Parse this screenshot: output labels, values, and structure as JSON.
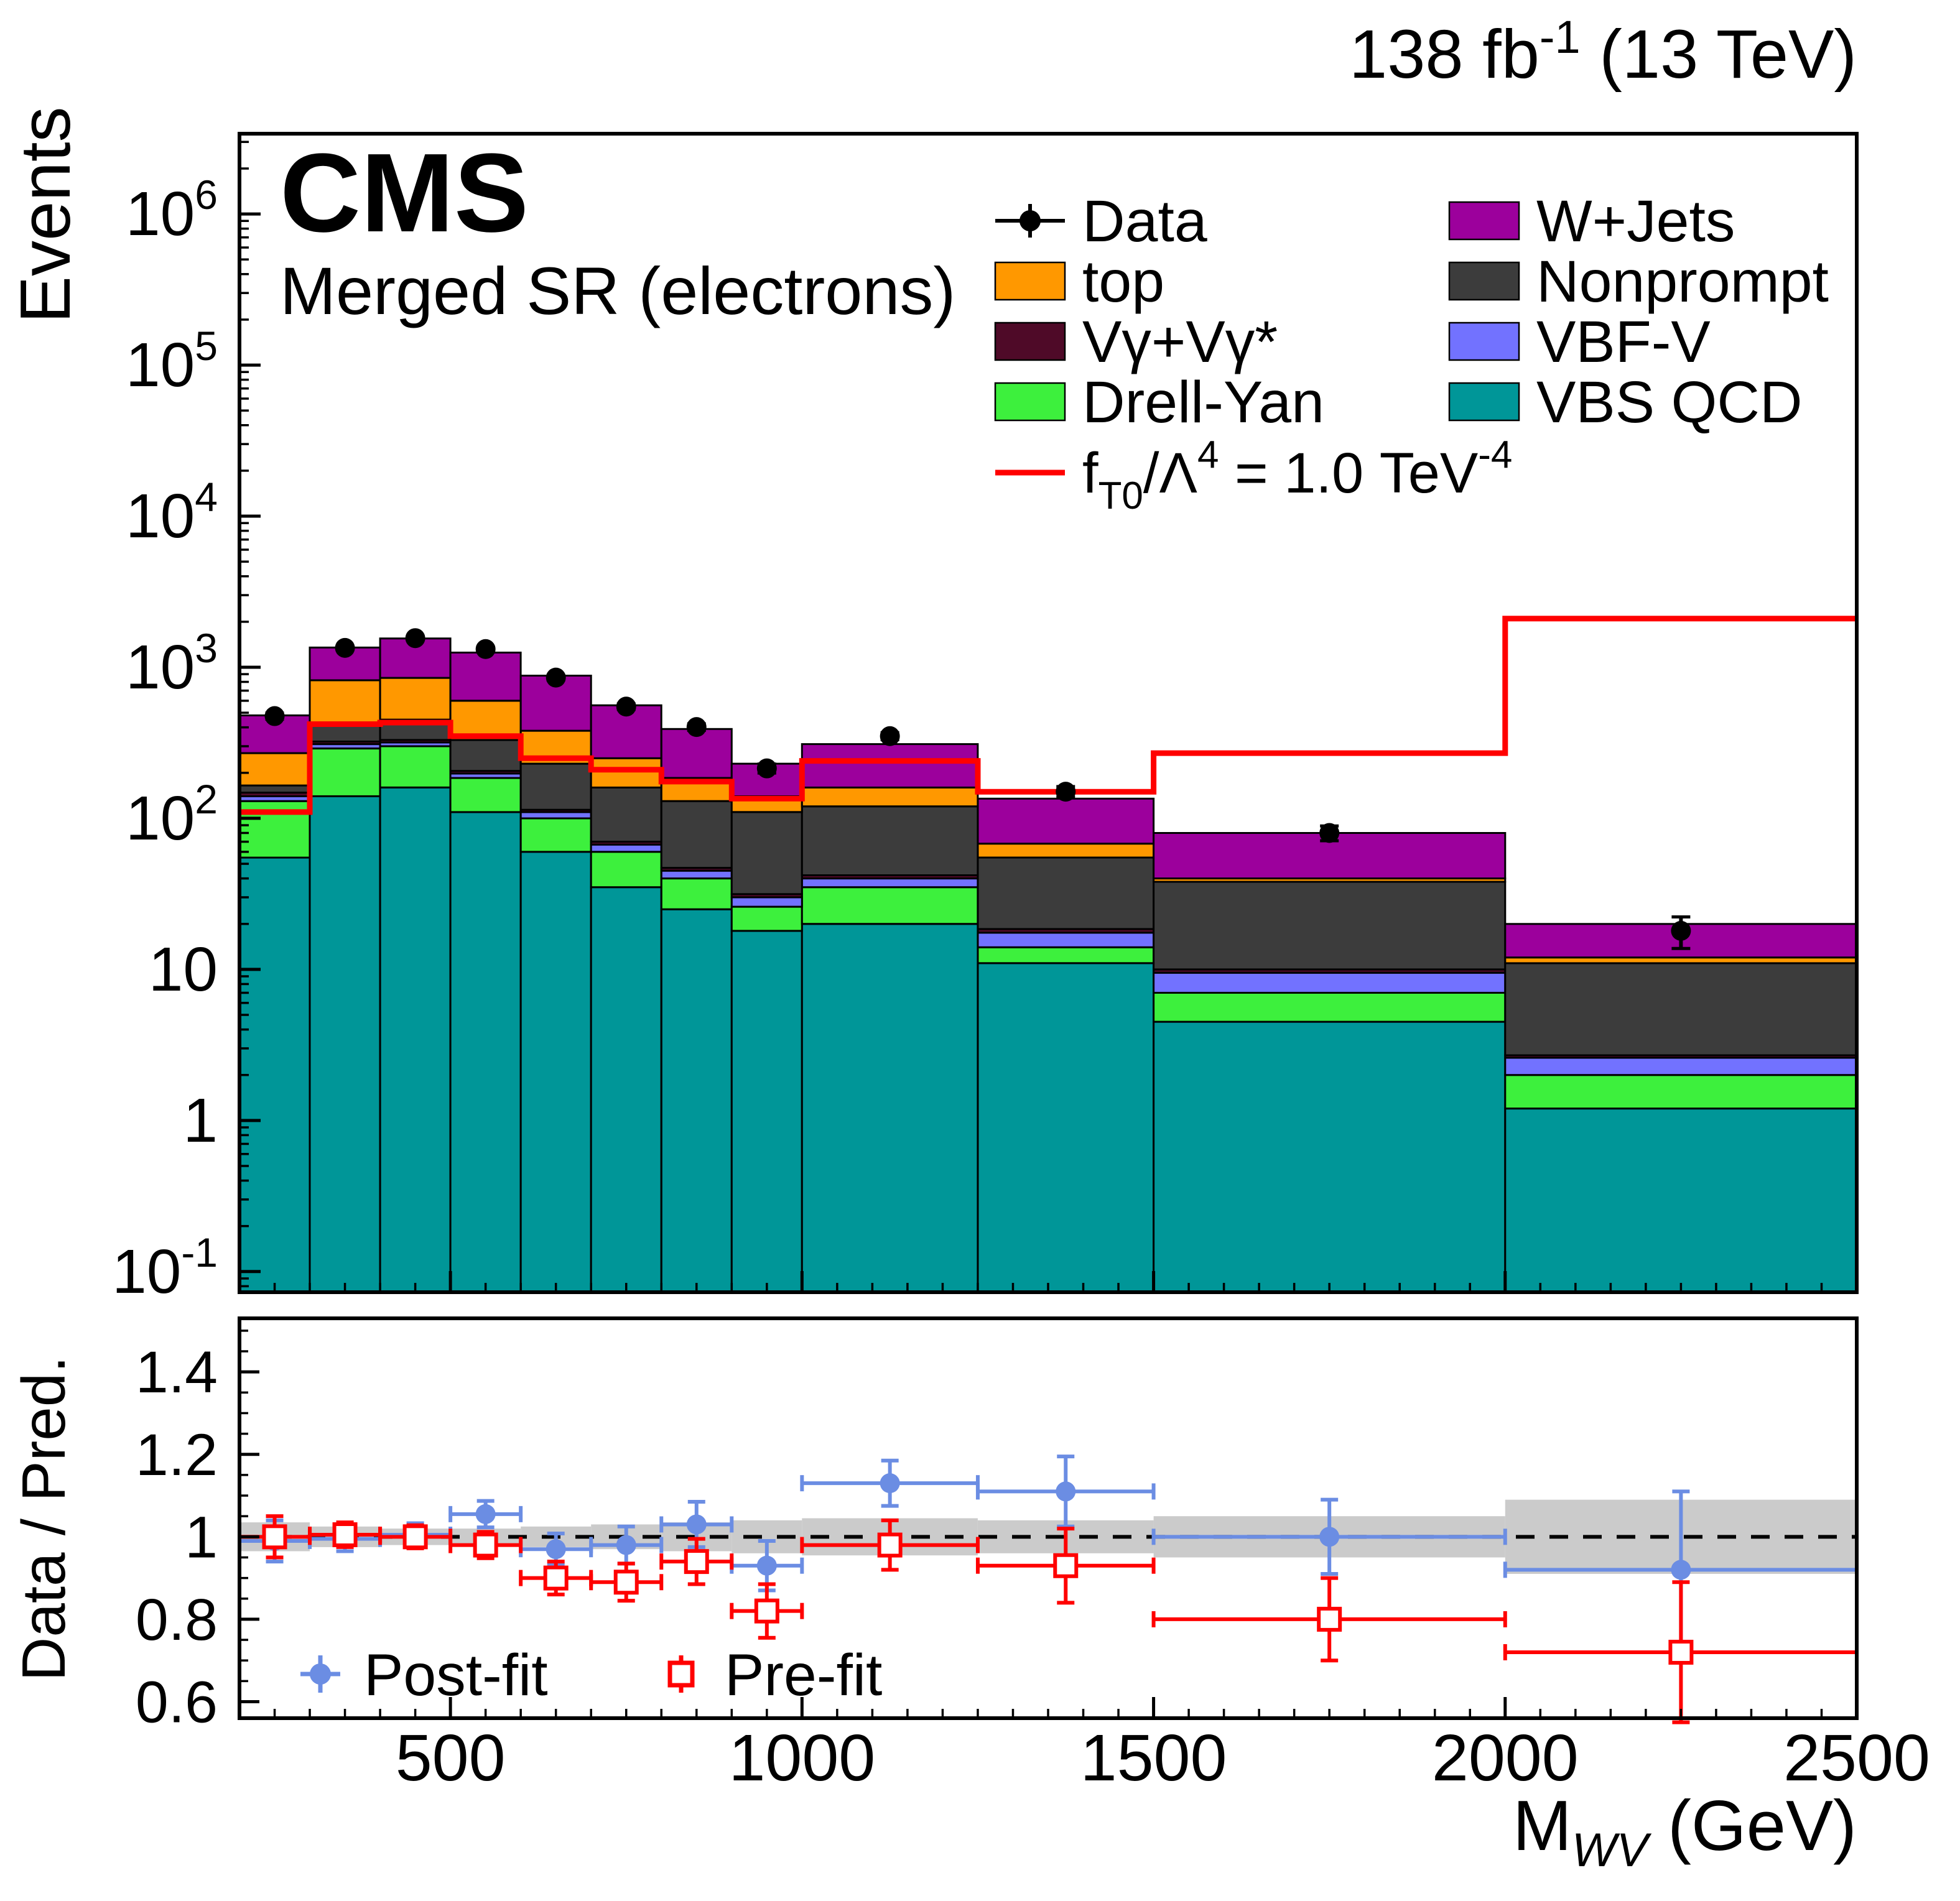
{
  "header": {
    "lumi_prefix": "138 fb",
    "lumi_exponent": "-1",
    "lumi_suffix": " (13 TeV)"
  },
  "titles": {
    "experiment": "CMS",
    "region": "Merged SR (electrons)",
    "y_axis": "Events",
    "ratio_y_axis": "Data / Pred.",
    "x_axis_main": "M",
    "x_axis_sub": "WV",
    "x_axis_unit": " (GeV)"
  },
  "signal_label_parts": {
    "f": "f",
    "sub": "T0",
    "slash_lambda": "/Λ",
    "exp_four": "4",
    "equals": " = 1.0 TeV",
    "exp_minus_four": "-4"
  },
  "ratio_legend": {
    "postfit": "Post-fit",
    "prefit": "Pre-fit"
  },
  "chart_data": {
    "type": "bar",
    "variant": "stacked log-scale histogram with data points, signal-step overlay and data/prediction ratio panel",
    "x_axis": {
      "label": "M_WV (GeV)",
      "range": [
        200,
        2500
      ],
      "major_ticks": [
        500,
        1000,
        1500,
        2000,
        2500
      ],
      "minor_tick_step": 50
    },
    "y_axis": {
      "label": "Events",
      "scale": "log",
      "range": [
        0.073,
        3400000
      ],
      "tick_exponents": [
        -1,
        0,
        1,
        2,
        3,
        4,
        5,
        6
      ]
    },
    "bin_edges": [
      200,
      300,
      400,
      500,
      600,
      700,
      800,
      900,
      1000,
      1250,
      1500,
      2000,
      2500
    ],
    "stack_series": [
      {
        "name": "VBS QCD",
        "color": "#009698",
        "values": [
          55,
          140,
          160,
          110,
          60,
          35,
          25,
          18,
          20,
          11,
          4.5,
          1.2
        ]
      },
      {
        "name": "Drell-Yan",
        "color": "#3DF03D",
        "values": [
          75,
          150,
          140,
          75,
          40,
          25,
          15,
          8,
          15,
          3,
          2.5,
          0.8
        ]
      },
      {
        "name": "VBF-V",
        "color": "#7272FF",
        "values": [
          10,
          20,
          18,
          13,
          10,
          7,
          5,
          4,
          5,
          3.5,
          2.5,
          0.6
        ]
      },
      {
        "name": "Vγ+Vγ*",
        "color": "#4F0A28",
        "values": [
          8,
          12,
          12,
          8,
          4,
          3,
          2,
          1.5,
          2,
          1,
          0.5,
          0.1
        ]
      },
      {
        "name": "Nonprompt",
        "color": "#3C3C3C",
        "values": [
          17,
          108,
          120,
          124,
          116,
          90,
          83,
          78.5,
          78,
          36.5,
          28,
          8.3
        ]
      },
      {
        "name": "top",
        "color": "#FF9800",
        "values": [
          105,
          390,
          400,
          270,
          150,
          90,
          55,
          30,
          40,
          13,
          2,
          1
        ]
      },
      {
        "name": "W+Jets",
        "color": "#9C009C",
        "values": [
          210,
          530,
          700,
          650,
          500,
          310,
          205,
          90,
          150,
          67,
          40,
          8
        ]
      }
    ],
    "data_series": {
      "name": "Data",
      "color": "#000000",
      "values": [
        475,
        1343,
        1558,
        1319,
        854,
        549,
        402,
        214,
        350,
        150,
        80,
        18
      ]
    },
    "signal": {
      "name": "f_T0/Λ^4 = 1.0 TeV^-4",
      "color": "#FF0000",
      "values": [
        110,
        420,
        430,
        350,
        250,
        210,
        175,
        135,
        240,
        150,
        270,
        2100
      ]
    },
    "legend_columns": [
      [
        "Data",
        "top",
        "Vγ+Vγ*",
        "Drell-Yan"
      ],
      [
        "W+Jets",
        "Nonprompt",
        "VBF-V",
        "VBS QCD"
      ]
    ],
    "ratio_panel": {
      "y_label": "Data / Pred.",
      "y_range": [
        0.56,
        1.53
      ],
      "y_major_ticks": [
        0.6,
        0.8,
        1.0,
        1.2,
        1.4
      ],
      "reference_line": 1.0,
      "band_color": "#CBCBCB",
      "uncertainty_band": [
        0.035,
        0.025,
        0.02,
        0.02,
        0.025,
        0.03,
        0.035,
        0.04,
        0.045,
        0.04,
        0.05,
        0.09
      ],
      "postfit": {
        "label": "Post-fit",
        "color": "#6B8DE3",
        "values": [
          0.99,
          0.995,
          1.005,
          1.055,
          0.97,
          0.98,
          1.03,
          0.93,
          1.13,
          1.11,
          1.0,
          0.92
        ],
        "errors": [
          0.05,
          0.03,
          0.028,
          0.032,
          0.038,
          0.045,
          0.055,
          0.06,
          0.055,
          0.085,
          0.09,
          0.19
        ]
      },
      "prefit": {
        "label": "Pre-fit",
        "color": "#FF0000",
        "values": [
          1.0,
          1.005,
          1.0,
          0.98,
          0.9,
          0.89,
          0.94,
          0.82,
          0.98,
          0.93,
          0.8,
          0.72
        ],
        "errors": [
          0.05,
          0.03,
          0.028,
          0.032,
          0.04,
          0.045,
          0.055,
          0.065,
          0.06,
          0.09,
          0.1,
          0.17
        ]
      }
    }
  }
}
